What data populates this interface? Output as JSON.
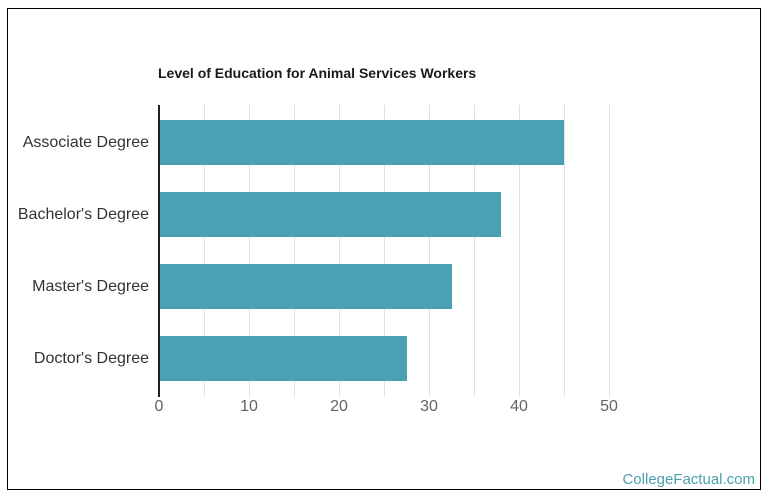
{
  "chart_data": {
    "type": "bar",
    "orientation": "horizontal",
    "title": "Level of Education for Animal Services Workers",
    "categories": [
      "Associate Degree",
      "Bachelor's Degree",
      "Master's Degree",
      "Doctor's Degree"
    ],
    "values": [
      45,
      38,
      32.5,
      27.5
    ],
    "xlabel": "",
    "ylabel": "",
    "x_ticks": [
      0,
      10,
      20,
      30,
      40,
      50
    ],
    "xlim": [
      0,
      55
    ],
    "gridline_step": 5,
    "grid": true,
    "legend": "none",
    "bar_color": "#4AA1B3"
  },
  "watermark": {
    "text": "CollegeFactual.com",
    "color": "#4BA0AF"
  },
  "colors": {
    "accent_teal": "#4AA1B3",
    "title_text": "#1a1a1a",
    "category_label_text": "#333333",
    "tick_label_text": "#636363",
    "gridline": "#e0e0e0",
    "axis_line": "#212121",
    "frame_border": "#000000",
    "background": "#ffffff"
  }
}
